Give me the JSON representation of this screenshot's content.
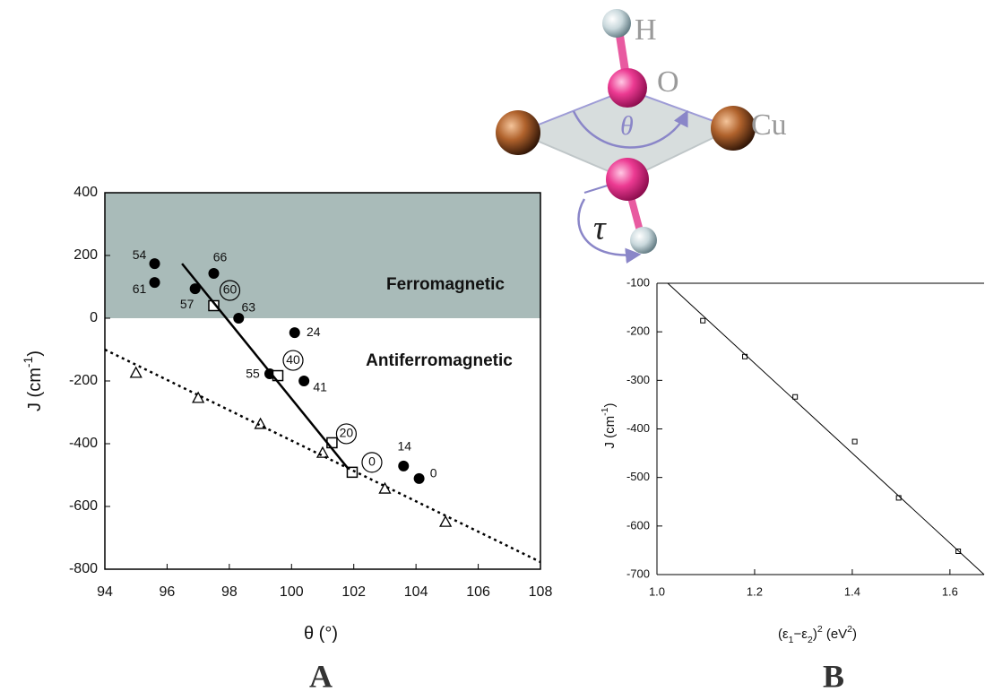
{
  "chart_data": [
    {
      "type": "scatter",
      "panel": "A",
      "xlabel": [
        {
          "text": "θ (°)"
        }
      ],
      "ylabel": [
        {
          "text": "J (cm"
        },
        {
          "text": "-1",
          "shift": "super"
        },
        {
          "text": ")"
        }
      ],
      "xlim": [
        94,
        108
      ],
      "ylim": [
        -800,
        400
      ],
      "xticks": [
        94,
        96,
        98,
        100,
        102,
        104,
        106,
        108
      ],
      "yticks": [
        -800,
        -600,
        -400,
        -200,
        0,
        200,
        400
      ],
      "shade": {
        "from": 0,
        "to": 400,
        "color": "#a9bbb9"
      },
      "annotations": [
        "Ferromagnetic",
        "Antiferromagnetic"
      ],
      "series": [
        {
          "marker": "circle-filled",
          "color": "#000000",
          "x": [
            95.6,
            95.6,
            96.9,
            97.5,
            98.3,
            100.1,
            99.3,
            100.4,
            103.6,
            104.1
          ],
          "values": [
            174,
            114,
            94,
            143,
            0,
            -46,
            -177,
            -200,
            -471,
            -511
          ],
          "point_labels": [
            "54",
            "61",
            "57",
            "66",
            "63",
            "24",
            "55",
            "41",
            "14",
            "0"
          ]
        },
        {
          "marker": "square-open",
          "color": "#000000",
          "x": [
            97.5,
            99.56,
            101.3,
            101.95
          ],
          "values": [
            40,
            -183,
            -397,
            -491
          ],
          "point_labels": [
            "60",
            "40",
            "20",
            "0"
          ],
          "label_circled": true
        },
        {
          "marker": "triangle-open",
          "color": "#000000",
          "x": [
            95,
            97,
            99,
            101,
            103,
            104.95
          ],
          "values": [
            -174,
            -254,
            -337,
            -429,
            -543,
            -649
          ]
        },
        {
          "marker": "none",
          "line": "solid",
          "color": "#000000",
          "x": [
            96.48,
            101.8
          ],
          "values": [
            174,
            -477
          ]
        },
        {
          "marker": "none",
          "line": "dotted",
          "color": "#000000",
          "x": [
            94,
            108
          ],
          "values": [
            -100,
            -777
          ]
        }
      ]
    },
    {
      "type": "scatter",
      "panel": "B",
      "xlabel": [
        {
          "text": "(ε"
        },
        {
          "text": "1",
          "shift": "sub"
        },
        {
          "text": "−ε"
        },
        {
          "text": "2",
          "shift": "sub"
        },
        {
          "text": ")"
        },
        {
          "text": "2",
          "shift": "super"
        },
        {
          "text": "   (eV"
        },
        {
          "text": "2",
          "shift": "super"
        },
        {
          "text": ")"
        }
      ],
      "ylabel": [
        {
          "text": "J (cm"
        },
        {
          "text": "-1",
          "shift": "super"
        },
        {
          "text": ")"
        }
      ],
      "xlim": [
        1.0,
        1.67
      ],
      "ylim": [
        -700,
        -100
      ],
      "xticks": [
        {
          "value": 1,
          "label": "1.0"
        },
        1.2,
        1.4,
        1.6
      ],
      "yticks": [
        -700,
        -600,
        -500,
        -400,
        -300,
        -200,
        -100
      ],
      "series": [
        {
          "marker": "square-open",
          "color": "#000000",
          "x": [
            1.094,
            1.18,
            1.283,
            1.405,
            1.495,
            1.617
          ],
          "values": [
            -177,
            -251,
            -334,
            -426,
            -542,
            -652
          ]
        },
        {
          "marker": "none",
          "line": "thin",
          "color": "#000000",
          "x": [
            1.022,
            1.67
          ],
          "values": [
            -100,
            -700
          ]
        }
      ]
    }
  ],
  "diagram": {
    "labels": [
      "H",
      "O",
      "Cu",
      "θ",
      "τ"
    ]
  }
}
